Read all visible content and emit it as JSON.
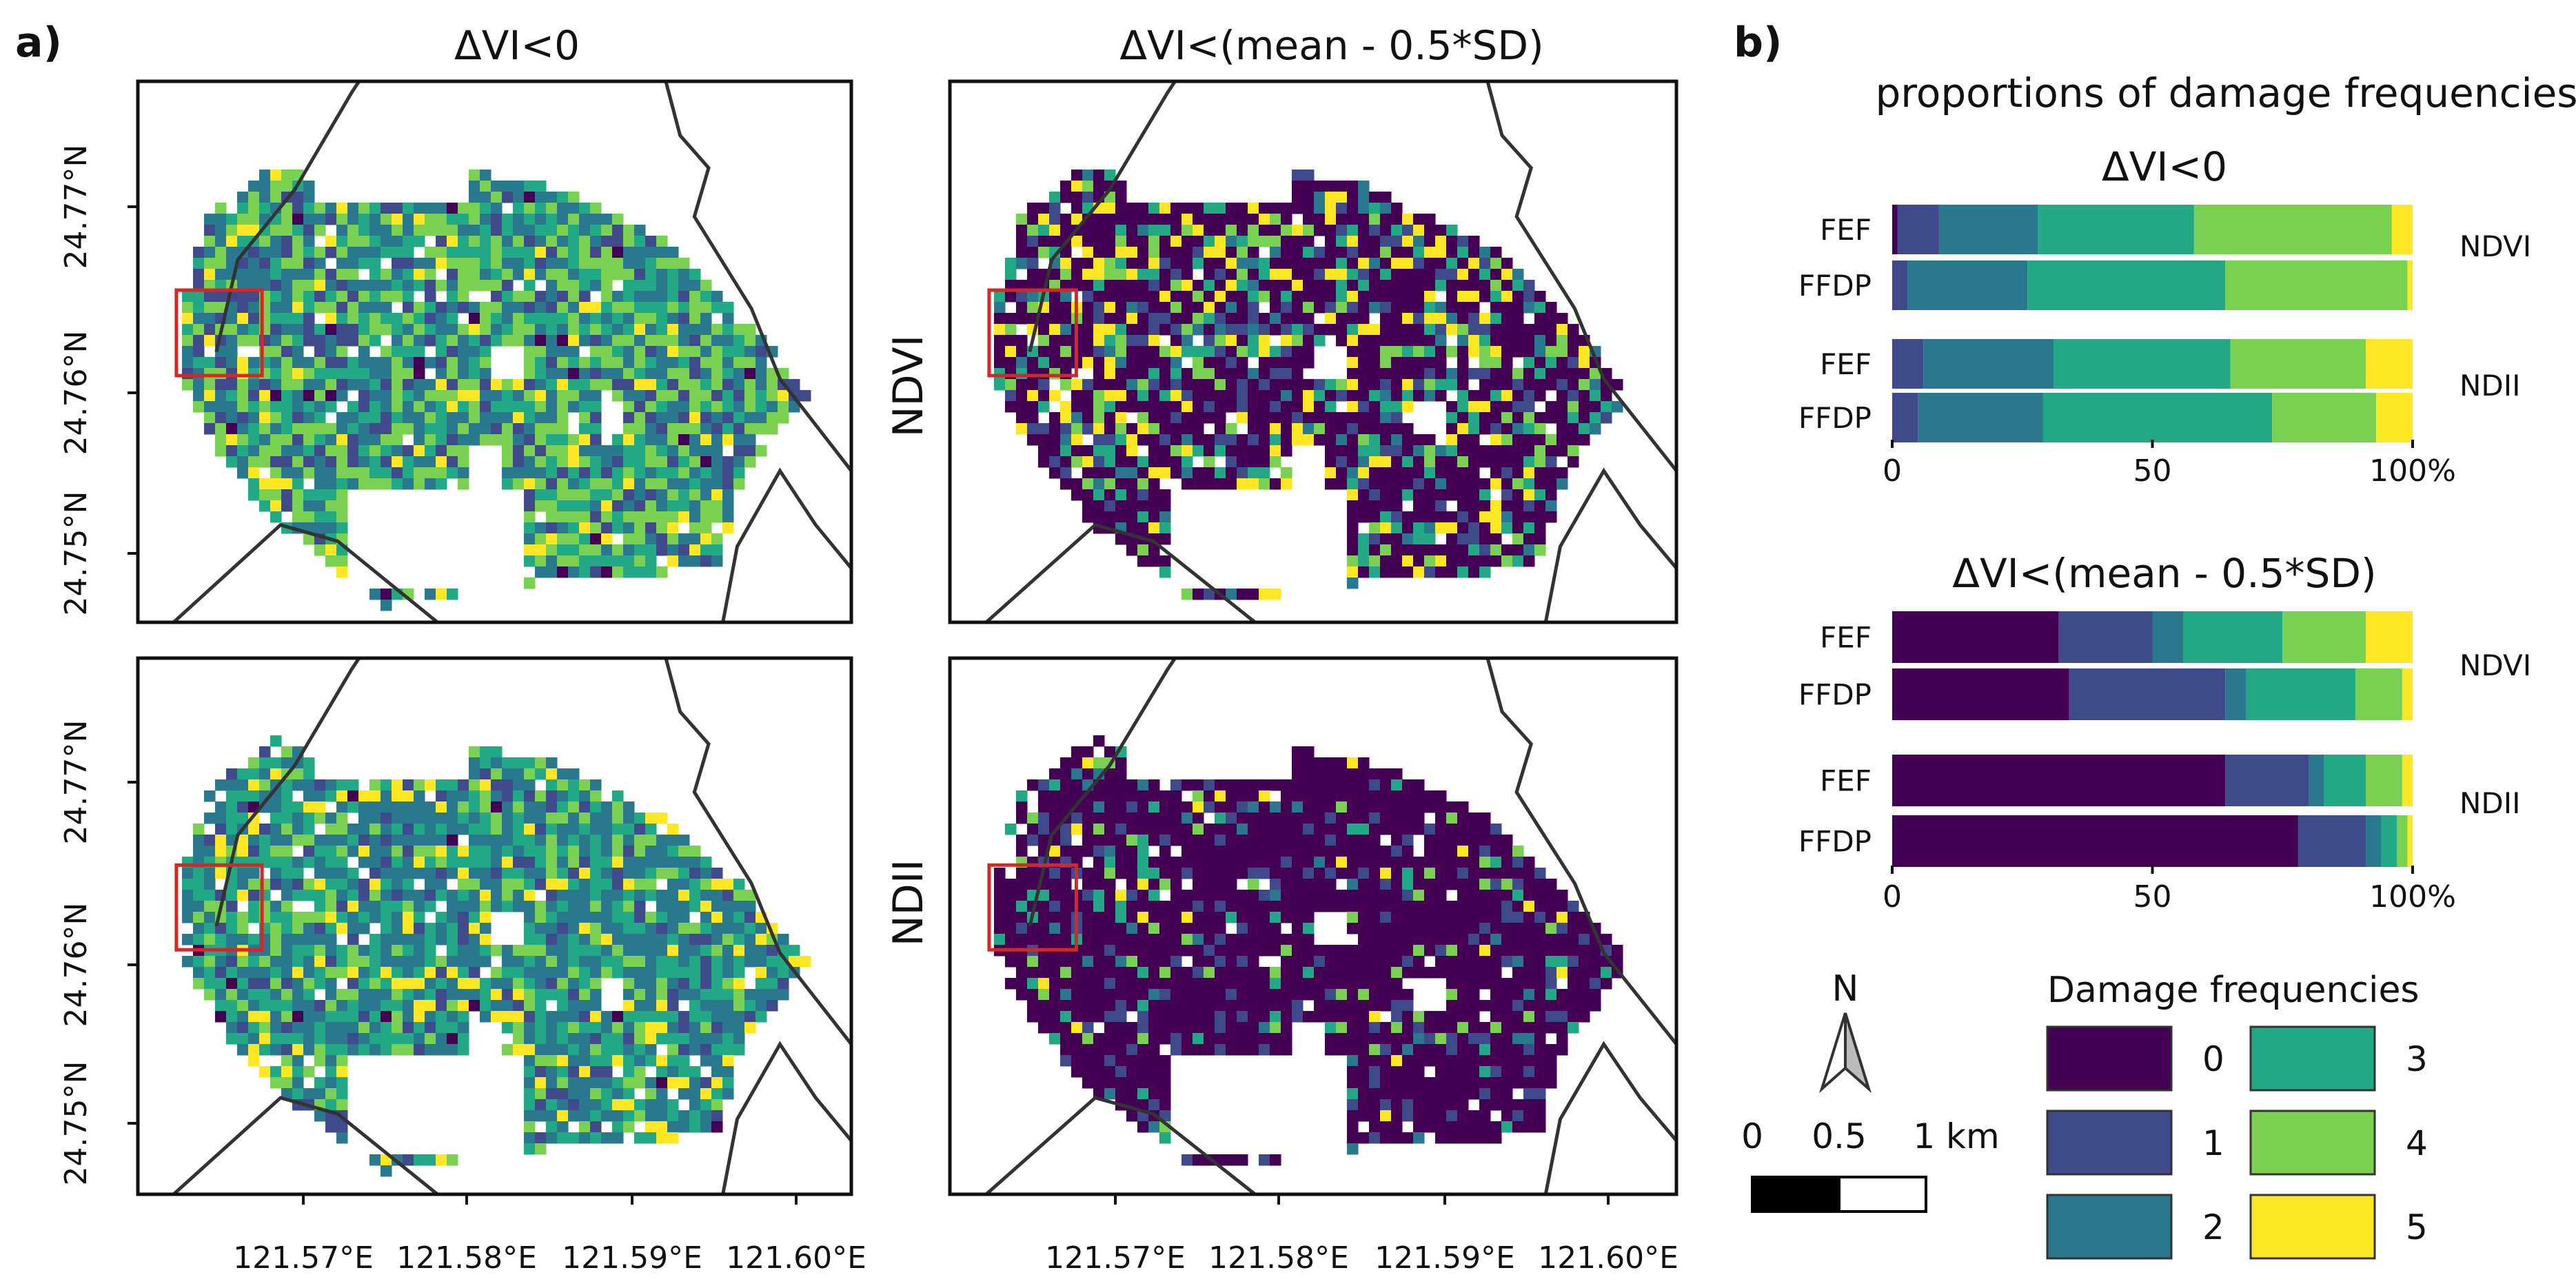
{
  "panel_a": {
    "label": "a)",
    "column_titles": [
      "ΔVI<0",
      "ΔVI<(mean - 0.5*SD)"
    ],
    "row_labels": [
      "NDVI",
      "NDII"
    ],
    "lat_ticks": [
      "24.75°N",
      "24.76°N",
      "24.77°N"
    ],
    "lon_ticks": [
      "121.57°E",
      "121.58°E",
      "121.59°E",
      "121.60°E"
    ],
    "scale_bar": {
      "ticks": [
        "0",
        "0.5",
        "1 km"
      ],
      "north_label": "N"
    }
  },
  "panel_b": {
    "label": "b)",
    "title": "proportions of damage frequencies"
  },
  "legend": {
    "title": "Damage frequencies",
    "items": [
      {
        "label": "0",
        "color": "#440154"
      },
      {
        "label": "1",
        "color": "#3e4a89"
      },
      {
        "label": "2",
        "color": "#2a788e"
      },
      {
        "label": "3",
        "color": "#22a884"
      },
      {
        "label": "4",
        "color": "#7ad151"
      },
      {
        "label": "5",
        "color": "#fde725"
      }
    ]
  },
  "colors": {
    "land_outline": "#333333",
    "study_box": "#d62728",
    "frame": "#111111"
  },
  "chart_data": [
    {
      "type": "bar",
      "orientation": "horizontal",
      "stacked": true,
      "title": "ΔVI<0",
      "categories": [
        "FEF",
        "FFDP",
        "FEF",
        "FFDP"
      ],
      "groups": [
        {
          "name": "NDVI",
          "rows": [
            "FEF",
            "FFDP"
          ]
        },
        {
          "name": "NDII",
          "rows": [
            "FEF",
            "FFDP"
          ]
        }
      ],
      "series": [
        {
          "name": "0",
          "values": [
            1,
            0,
            0,
            0
          ]
        },
        {
          "name": "1",
          "values": [
            8,
            3,
            6,
            5
          ]
        },
        {
          "name": "2",
          "values": [
            19,
            23,
            25,
            24
          ]
        },
        {
          "name": "3",
          "values": [
            30,
            38,
            34,
            44
          ]
        },
        {
          "name": "4",
          "values": [
            38,
            35,
            26,
            20
          ]
        },
        {
          "name": "5",
          "values": [
            4,
            1,
            9,
            7
          ]
        }
      ],
      "xlim": [
        0,
        100
      ],
      "xticks": [
        "0",
        "50",
        "100%"
      ]
    },
    {
      "type": "bar",
      "orientation": "horizontal",
      "stacked": true,
      "title": "ΔVI<(mean - 0.5*SD)",
      "categories": [
        "FEF",
        "FFDP",
        "FEF",
        "FFDP"
      ],
      "groups": [
        {
          "name": "NDVI",
          "rows": [
            "FEF",
            "FFDP"
          ]
        },
        {
          "name": "NDII",
          "rows": [
            "FEF",
            "FFDP"
          ]
        }
      ],
      "series": [
        {
          "name": "0",
          "values": [
            32,
            34,
            64,
            78
          ]
        },
        {
          "name": "1",
          "values": [
            18,
            30,
            16,
            13
          ]
        },
        {
          "name": "2",
          "values": [
            6,
            4,
            3,
            3
          ]
        },
        {
          "name": "3",
          "values": [
            19,
            21,
            8,
            3
          ]
        },
        {
          "name": "4",
          "values": [
            16,
            9,
            7,
            2
          ]
        },
        {
          "name": "5",
          "values": [
            9,
            2,
            2,
            1
          ]
        }
      ],
      "xlim": [
        0,
        100
      ],
      "xticks": [
        "0",
        "50",
        "100%"
      ]
    }
  ]
}
